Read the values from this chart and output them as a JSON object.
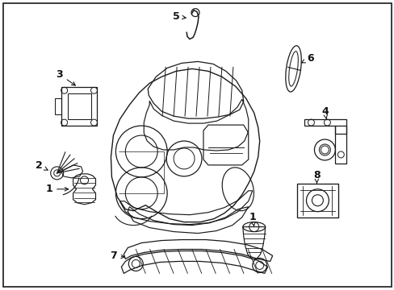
{
  "background_color": "#ffffff",
  "border_color": "#000000",
  "figure_width": 4.89,
  "figure_height": 3.6,
  "dpi": 100,
  "line_color": "#1a1a1a",
  "line_width": 0.85
}
